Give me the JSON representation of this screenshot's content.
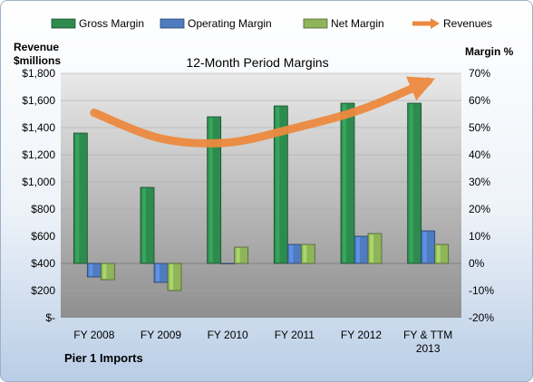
{
  "chart_data": {
    "type": "bar",
    "title": "12-Month Period Margins",
    "company": "Pier 1 Imports",
    "left_axis_title": [
      "Revenue",
      "$millions"
    ],
    "right_axis_title": "Margin %",
    "categories": [
      [
        "FY 2008"
      ],
      [
        "FY 2009"
      ],
      [
        "FY 2010"
      ],
      [
        "FY 2011"
      ],
      [
        "FY 2012"
      ],
      [
        "FY & TTM",
        "2013"
      ]
    ],
    "left_ticks": [
      "$-",
      "$200",
      "$400",
      "$600",
      "$800",
      "$1,000",
      "$1,200",
      "$1,400",
      "$1,600",
      "$1,800"
    ],
    "right_ticks": [
      "-20%",
      "-10%",
      "0%",
      "10%",
      "20%",
      "30%",
      "40%",
      "50%",
      "60%",
      "70%"
    ],
    "left_ylim": [
      0,
      1800
    ],
    "right_ylim": [
      -20,
      70
    ],
    "series": [
      {
        "name": "Gross Margin",
        "axis": "right",
        "color": "#2e8b4e",
        "values": [
          48,
          28,
          54,
          58,
          59,
          59
        ]
      },
      {
        "name": "Operating Margin",
        "axis": "right",
        "color": "#4f7bc0",
        "values": [
          -5,
          -7,
          0,
          7,
          10,
          12
        ]
      },
      {
        "name": "Net Margin",
        "axis": "right",
        "color": "#8fb45a",
        "values": [
          -6,
          -10,
          6,
          7,
          11,
          7
        ]
      },
      {
        "name": "Revenues",
        "axis": "left",
        "type": "line",
        "color": "#ed8a3f",
        "values": [
          1510,
          1320,
          1290,
          1397,
          1533,
          1740
        ]
      }
    ],
    "legend_position": "top"
  }
}
